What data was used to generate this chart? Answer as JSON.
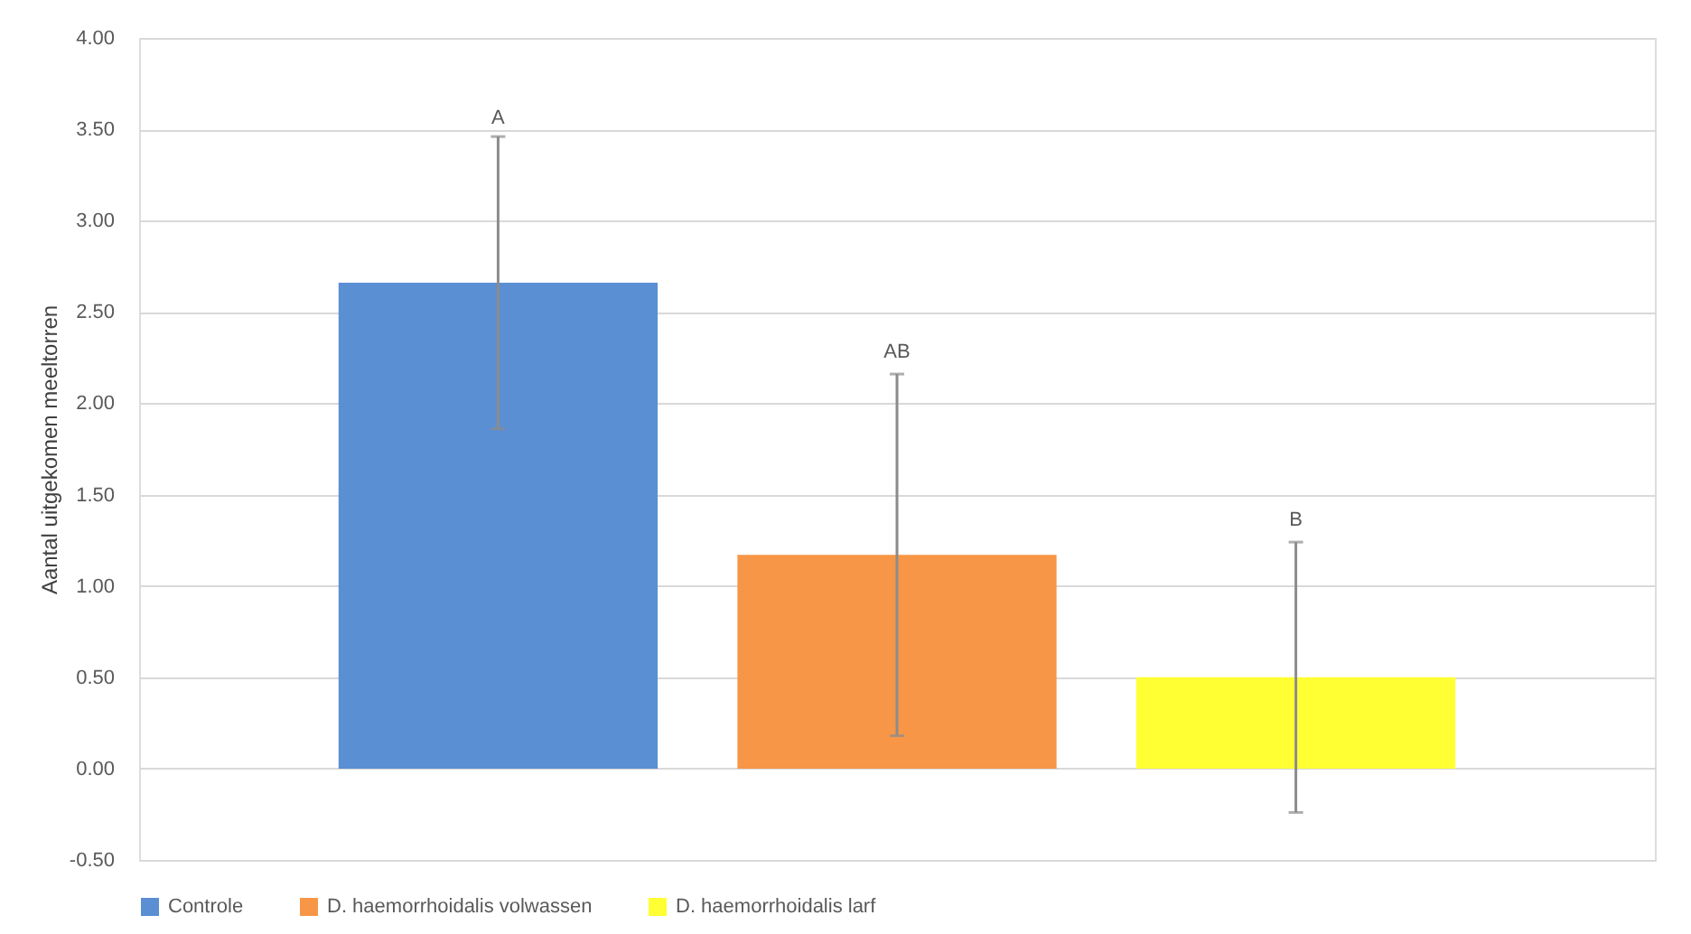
{
  "chart_data": {
    "type": "bar",
    "ylabel": "Aantal uitgekomen meeltorren",
    "categories": [
      null,
      null,
      null
    ],
    "series": [
      {
        "name": "Controle",
        "color": "#5a8fd4",
        "values": [
          2.66,
          null,
          null
        ],
        "errors": [
          0.8,
          null,
          null
        ]
      },
      {
        "name": "D. haemorrhoidalis volwassen",
        "color": "#f79646",
        "values": [
          null,
          1.17,
          null
        ],
        "errors": [
          null,
          0.99,
          null
        ]
      },
      {
        "name": "D. haemorrhoidalis larf",
        "color": "#ffff33",
        "values": [
          null,
          null,
          0.5
        ],
        "errors": [
          null,
          null,
          0.74
        ]
      }
    ],
    "annotations": [
      {
        "text": "A",
        "y": 3.44
      },
      {
        "text": "AB",
        "y": 2.16
      },
      {
        "text": "B",
        "y": 1.24
      }
    ],
    "ylim": [
      -0.5,
      4.0
    ],
    "yticks": [
      {
        "value": -0.5,
        "label": "-0.50"
      },
      {
        "value": 0,
        "label": "0.00"
      },
      {
        "value": 0.5,
        "label": "0.50"
      },
      {
        "value": 1.0,
        "label": "1.00"
      },
      {
        "value": 1.5,
        "label": "1.50"
      },
      {
        "value": 2.0,
        "label": "2.00"
      },
      {
        "value": 2.5,
        "label": "2.50"
      },
      {
        "value": 3.0,
        "label": "3.00"
      },
      {
        "value": 3.5,
        "label": "3.50"
      },
      {
        "value": 4.0,
        "label": "4.00"
      }
    ],
    "grid": "y",
    "legend": "bottom"
  }
}
